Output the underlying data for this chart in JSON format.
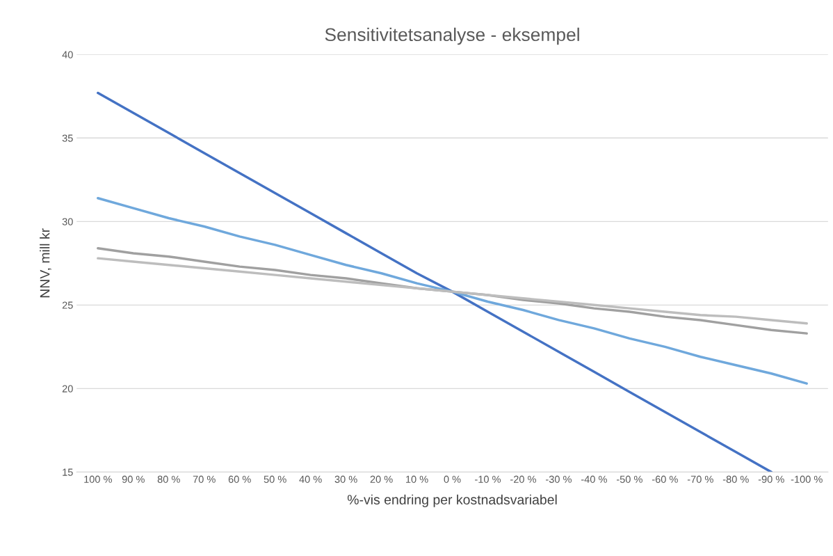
{
  "chart_data": {
    "type": "line",
    "title": "Sensitivitetsanalyse - eksempel",
    "xlabel": "%-vis endring per kostnadsvariabel",
    "ylabel": "NNV, mill kr",
    "categories": [
      "100 %",
      "90 %",
      "80 %",
      "70 %",
      "60 %",
      "50 %",
      "40 %",
      "30 %",
      "20 %",
      "10 %",
      "0 %",
      "-10 %",
      "-20 %",
      "-30 %",
      "-40 %",
      "-50 %",
      "-60 %",
      "-70 %",
      "-80 %",
      "-90 %",
      "-100 %"
    ],
    "series": [
      {
        "color": "#4472c4",
        "values": [
          37.7,
          36.5,
          35.3,
          34.1,
          32.9,
          31.7,
          30.5,
          29.3,
          28.1,
          26.9,
          25.8,
          24.6,
          23.4,
          22.2,
          21.0,
          19.8,
          18.6,
          17.4,
          16.2,
          15.0,
          null
        ]
      },
      {
        "color": "#6fa8dc",
        "values": [
          31.4,
          30.8,
          30.2,
          29.7,
          29.1,
          28.6,
          28.0,
          27.4,
          26.9,
          26.3,
          25.8,
          25.2,
          24.7,
          24.1,
          23.6,
          23.0,
          22.5,
          21.9,
          21.4,
          20.9,
          20.3
        ]
      },
      {
        "color": "#a0a0a0",
        "values": [
          28.4,
          28.1,
          27.9,
          27.6,
          27.3,
          27.1,
          26.8,
          26.6,
          26.3,
          26.0,
          25.8,
          25.6,
          25.3,
          25.1,
          24.8,
          24.6,
          24.3,
          24.1,
          23.8,
          23.5,
          23.3
        ]
      },
      {
        "color": "#bdbdbd",
        "values": [
          27.8,
          27.6,
          27.4,
          27.2,
          27.0,
          26.8,
          26.6,
          26.4,
          26.2,
          26.0,
          25.8,
          25.6,
          25.4,
          25.2,
          25.0,
          24.8,
          24.6,
          24.4,
          24.3,
          24.1,
          23.9
        ]
      }
    ],
    "ylim": [
      15,
      40
    ],
    "yticks": [
      15,
      20,
      25,
      30,
      35,
      40
    ],
    "grid": "y",
    "legend": false
  }
}
